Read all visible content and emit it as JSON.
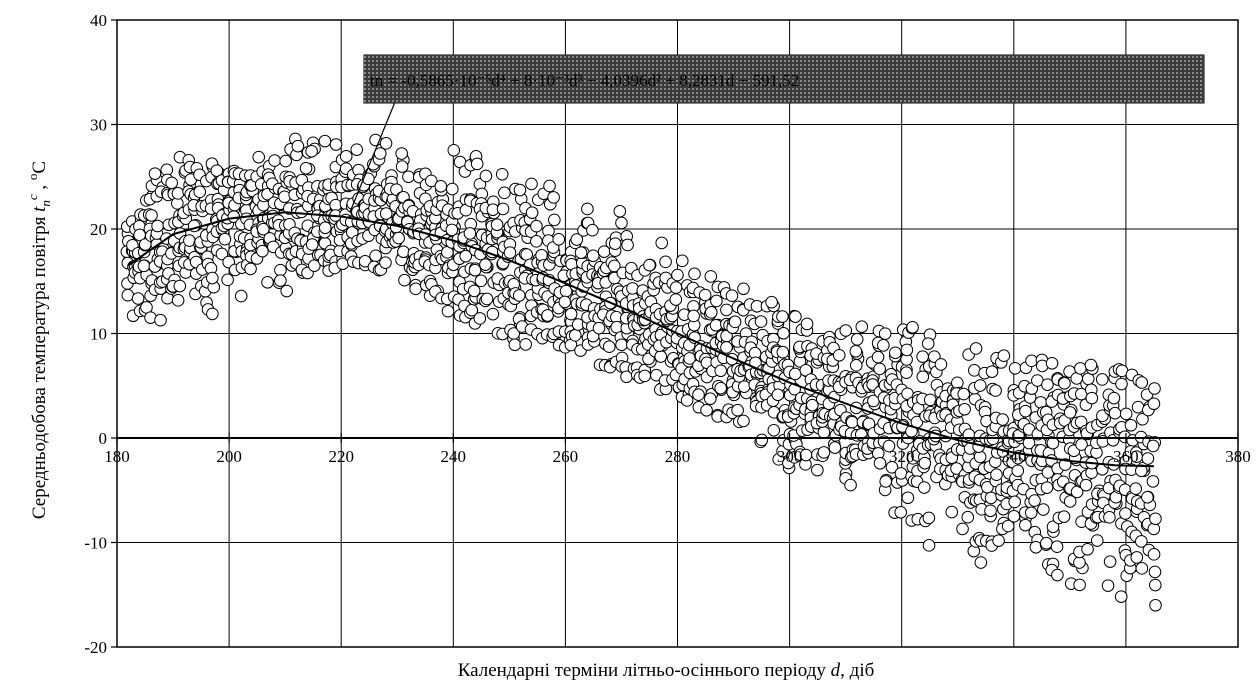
{
  "chart_data": {
    "type": "scatter",
    "xlabel_parts": {
      "prefix": "Календарні терміни літньо-осіннього періоду ",
      "var": "d",
      "suffix": ", діб"
    },
    "ylabel_parts": {
      "prefix": "Середньодобова температура повітря ",
      "var": "t",
      "sub": "n",
      "sup": "c",
      "sep": " , ",
      "unit_sup": "o",
      "unit": "C"
    },
    "xlim": [
      180,
      380
    ],
    "ylim": [
      -20,
      40
    ],
    "xticks": [
      "180",
      "200",
      "220",
      "240",
      "260",
      "280",
      "300",
      "320",
      "340",
      "360",
      "380"
    ],
    "yticks": [
      "40",
      "30",
      "20",
      "10",
      "0",
      "-10",
      "-20"
    ],
    "grid": true,
    "trendline": {
      "type": "polynomial",
      "x_range": [
        182,
        365
      ],
      "points": [
        [
          182,
          16.5
        ],
        [
          190,
          19.5
        ],
        [
          200,
          21.0
        ],
        [
          210,
          21.6
        ],
        [
          220,
          21.2
        ],
        [
          230,
          20.3
        ],
        [
          240,
          18.9
        ],
        [
          250,
          17.0
        ],
        [
          260,
          14.8
        ],
        [
          270,
          12.5
        ],
        [
          280,
          10.0
        ],
        [
          290,
          7.6
        ],
        [
          300,
          5.3
        ],
        [
          310,
          3.3
        ],
        [
          320,
          1.4
        ],
        [
          330,
          -0.2
        ],
        [
          340,
          -1.4
        ],
        [
          350,
          -2.2
        ],
        [
          358,
          -2.6
        ],
        [
          365,
          -2.7
        ]
      ],
      "equation": "tn = -0,5865·10⁻⁵d⁴ + 8·10⁻³d³ − 4,0396d² + 8,2831d − 591,52"
    },
    "scatter_description": "daily mean air temperatures, one point per day over multiple years",
    "scatter_envelope": [
      [
        182,
        11,
        24
      ],
      [
        190,
        11,
        27
      ],
      [
        200,
        12,
        26
      ],
      [
        210,
        14,
        28
      ],
      [
        215,
        16,
        33
      ],
      [
        220,
        16,
        30
      ],
      [
        230,
        15,
        28
      ],
      [
        240,
        11,
        28
      ],
      [
        250,
        9,
        26
      ],
      [
        260,
        8,
        24
      ],
      [
        270,
        6,
        22
      ],
      [
        280,
        4,
        18
      ],
      [
        290,
        1,
        15
      ],
      [
        300,
        -3,
        13
      ],
      [
        310,
        -4,
        11
      ],
      [
        320,
        -10,
        11
      ],
      [
        330,
        -12,
        9
      ],
      [
        340,
        -15,
        8
      ],
      [
        350,
        -17,
        7
      ],
      [
        360,
        -19,
        7
      ],
      [
        365,
        -20,
        5
      ]
    ]
  }
}
